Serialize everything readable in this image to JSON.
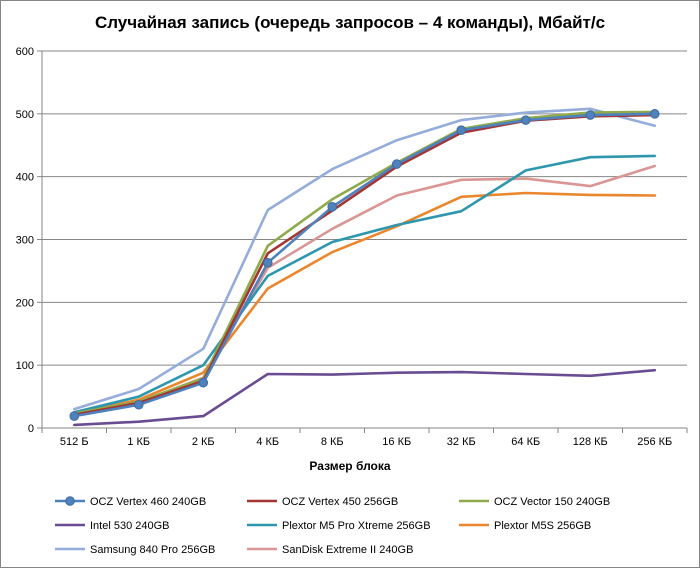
{
  "chart_data": {
    "type": "line",
    "title": "Случайная запись (очередь запросов – 4 команды), Мбайт/с",
    "xlabel": "Размер блока",
    "ylabel": "",
    "categories": [
      "512 Б",
      "1 КБ",
      "2 КБ",
      "4 КБ",
      "8 КБ",
      "16 КБ",
      "32 КБ",
      "64 КБ",
      "128 КБ",
      "256 КБ"
    ],
    "ylim": [
      0,
      600
    ],
    "yticks": [
      0,
      100,
      200,
      300,
      400,
      500,
      600
    ],
    "grid": true,
    "legend_position": "bottom",
    "series": [
      {
        "name": "OCZ Vertex 460 240GB",
        "color": "#4f81bd",
        "markers": true,
        "values": [
          19,
          37,
          72,
          263,
          352,
          420,
          474,
          490,
          498,
          500
        ]
      },
      {
        "name": "OCZ Vertex 450 256GB",
        "color": "#a33533",
        "markers": false,
        "values": [
          21,
          40,
          75,
          278,
          346,
          416,
          470,
          489,
          496,
          498
        ]
      },
      {
        "name": "OCZ Vector 150 240GB",
        "color": "#8faa4a",
        "markers": false,
        "values": [
          23,
          42,
          79,
          290,
          364,
          422,
          476,
          493,
          502,
          503
        ]
      },
      {
        "name": "Intel 530 240GB",
        "color": "#6a4c93",
        "markers": false,
        "values": [
          5,
          10,
          19,
          86,
          85,
          88,
          89,
          86,
          83,
          92
        ]
      },
      {
        "name": "Plextor M5 Pro Xtreme 256GB",
        "color": "#2e97ad",
        "markers": false,
        "values": [
          25,
          50,
          100,
          242,
          296,
          323,
          345,
          410,
          431,
          433
        ]
      },
      {
        "name": "Plextor M5S 256GB",
        "color": "#ea862d",
        "markers": false,
        "values": [
          22,
          45,
          88,
          222,
          280,
          321,
          368,
          374,
          371,
          370
        ]
      },
      {
        "name": "Samsung 840 Pro 256GB",
        "color": "#95adda",
        "markers": false,
        "values": [
          30,
          62,
          126,
          347,
          412,
          458,
          490,
          502,
          508,
          481
        ]
      },
      {
        "name": "SanDisk Extreme II 240GB",
        "color": "#d99694",
        "markers": false,
        "values": [
          20,
          41,
          80,
          255,
          317,
          370,
          395,
          397,
          385,
          417
        ]
      }
    ]
  }
}
